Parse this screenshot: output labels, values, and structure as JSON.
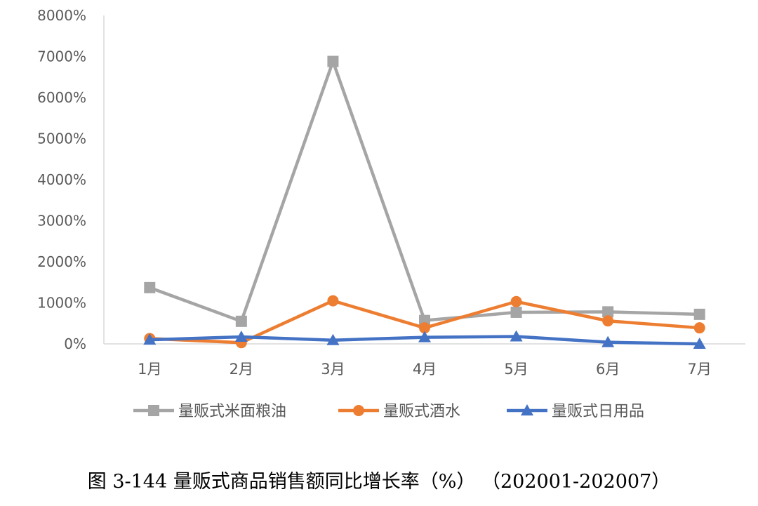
{
  "chart_data": {
    "type": "line",
    "categories": [
      "1月",
      "2月",
      "3月",
      "4月",
      "5月",
      "6月",
      "7月"
    ],
    "y_ticks": [
      "0%",
      "1000%",
      "2000%",
      "3000%",
      "4000%",
      "5000%",
      "6000%",
      "7000%",
      "8000%"
    ],
    "ylim": [
      0,
      8000
    ],
    "y_unit": "%",
    "grid": false,
    "legend_position": "bottom",
    "series": [
      {
        "name": "量贩式米面粮油",
        "color": "#A5A5A5",
        "marker": "square",
        "values": [
          1370,
          550,
          6880,
          570,
          770,
          780,
          720
        ]
      },
      {
        "name": "量贩式酒水",
        "color": "#ED7D31",
        "marker": "circle",
        "values": [
          130,
          30,
          1050,
          390,
          1030,
          560,
          390
        ]
      },
      {
        "name": "量贩式日用品",
        "color": "#4472C4",
        "marker": "triangle",
        "values": [
          100,
          170,
          90,
          160,
          180,
          40,
          0
        ]
      }
    ]
  },
  "caption": "图 3-144  量贩式商品销售额同比增长率（%）  （202001-202007）"
}
